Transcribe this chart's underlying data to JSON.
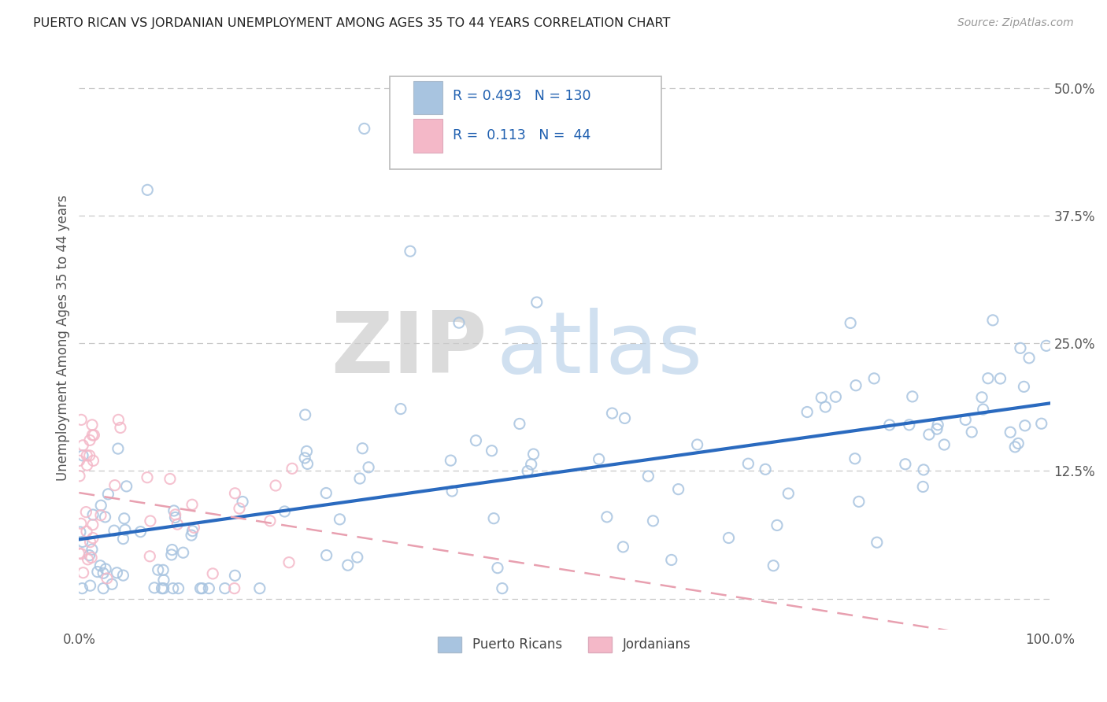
{
  "title": "PUERTO RICAN VS JORDANIAN UNEMPLOYMENT AMONG AGES 35 TO 44 YEARS CORRELATION CHART",
  "source": "Source: ZipAtlas.com",
  "ylabel_label": "Unemployment Among Ages 35 to 44 years",
  "xlim": [
    0,
    1.0
  ],
  "ylim": [
    -0.03,
    0.54
  ],
  "pr_color": "#a8c4e0",
  "jo_color": "#f4b8c8",
  "pr_line_color": "#2a6abf",
  "jo_line_color": "#e8a0b0",
  "legend_pr_label": "Puerto Ricans",
  "legend_jo_label": "Jordanians",
  "pr_R": 0.493,
  "pr_N": 130,
  "jo_R": 0.113,
  "jo_N": 44,
  "watermark_zip": "ZIP",
  "watermark_atlas": "atlas",
  "background_color": "#ffffff",
  "grid_color": "#c8c8c8",
  "title_color": "#222222",
  "source_color": "#999999",
  "tick_color": "#555555"
}
